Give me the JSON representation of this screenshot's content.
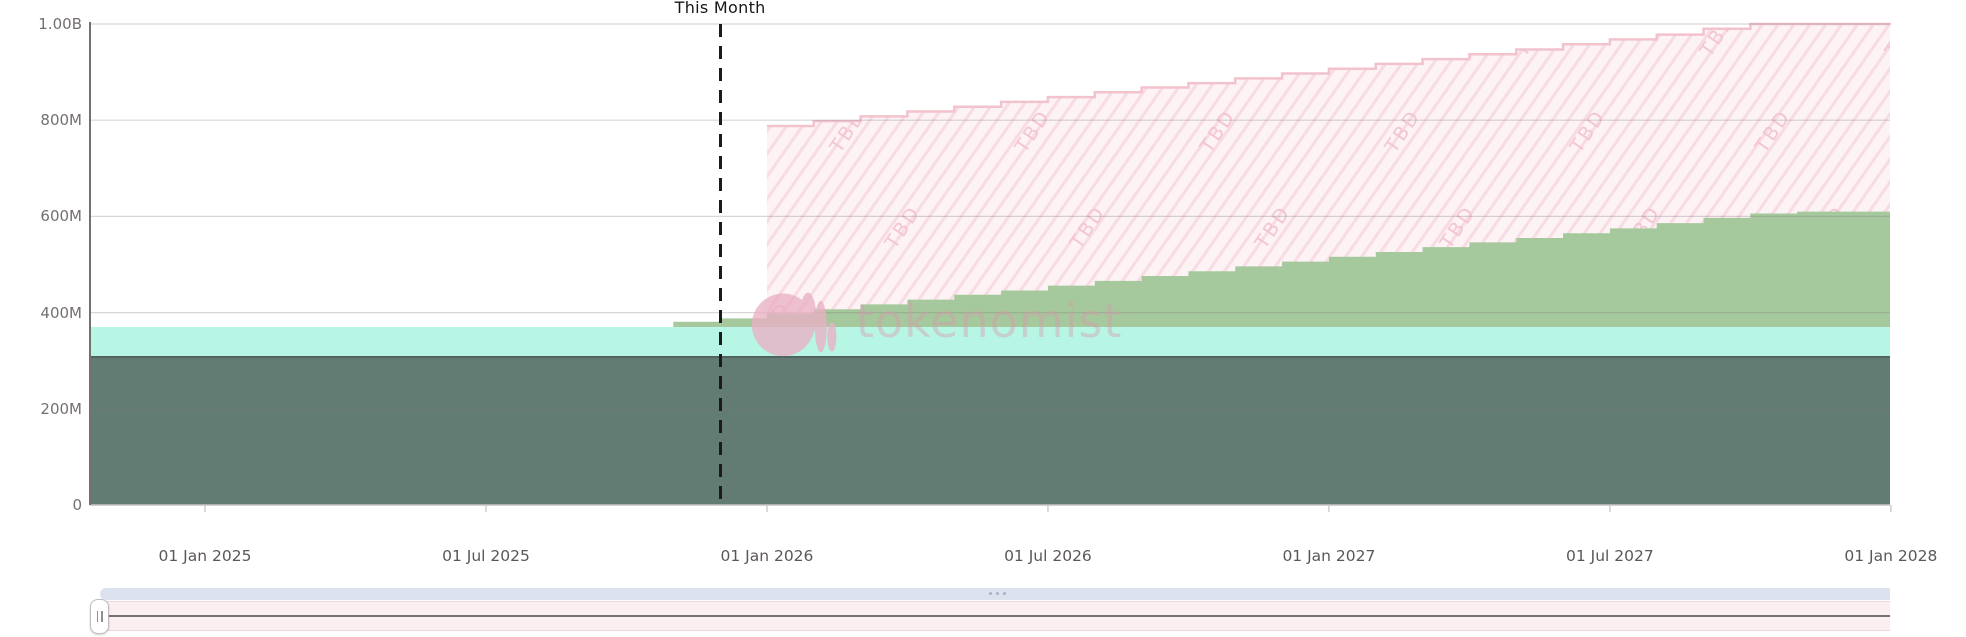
{
  "chart_data": {
    "type": "area",
    "stacked": true,
    "step_interpolation": "step-after",
    "title": "This Month",
    "watermark": "tokenomist",
    "tbd_label": "TBD",
    "unit": "tokens, millions (M) / billions (B)",
    "ylim": [
      0,
      1000
    ],
    "grid": true,
    "months": [
      "2024-10",
      "2024-11",
      "2024-12",
      "2025-01",
      "2025-02",
      "2025-03",
      "2025-04",
      "2025-05",
      "2025-06",
      "2025-07",
      "2025-08",
      "2025-09",
      "2025-10",
      "2025-11",
      "2025-12",
      "2026-01",
      "2026-02",
      "2026-03",
      "2026-04",
      "2026-05",
      "2026-06",
      "2026-07",
      "2026-08",
      "2026-09",
      "2026-10",
      "2026-11",
      "2026-12",
      "2027-01",
      "2027-02",
      "2027-03",
      "2027-04",
      "2027-05",
      "2027-06",
      "2027-07",
      "2027-08",
      "2027-09",
      "2027-10",
      "2027-11",
      "2027-12",
      "2028-01"
    ],
    "this_month_marker": "2025-12",
    "y_axis": {
      "tick_values": [
        0,
        200,
        400,
        600,
        800,
        1000
      ],
      "tick_labels": [
        "0",
        "200M",
        "400M",
        "600M",
        "800M",
        "1.00B"
      ]
    },
    "x_axis": {
      "tick_months": [
        "2025-01",
        "2025-07",
        "2026-01",
        "2026-07",
        "2027-01",
        "2027-07",
        "2028-01"
      ],
      "tick_labels": [
        "01 Jan 2025",
        "01 Jul 2025",
        "01 Jan 2026",
        "01 Jul 2026",
        "01 Jan 2027",
        "01 Jul 2027",
        "01 Jan 2028"
      ]
    },
    "series": [
      {
        "name": "base-band-dark-teal",
        "color": "#627c73",
        "top_edge_color": "#4e645d",
        "cumulative_top_m": {
          "constant": 310,
          "count": 40
        }
      },
      {
        "name": "band-mint",
        "color": "#b7f6e5",
        "cumulative_top_m": {
          "constant": 370,
          "count": 40
        }
      },
      {
        "name": "monthly-unlocks-green",
        "color": "#a5c99c",
        "cumulative_top_m": [
          null,
          null,
          null,
          null,
          null,
          null,
          null,
          null,
          null,
          null,
          null,
          null,
          null,
          381,
          388,
          398,
          407,
          417,
          427,
          437,
          446,
          456,
          466,
          476,
          486,
          496,
          506,
          516,
          526,
          536,
          546,
          555,
          565,
          575,
          586,
          597,
          606,
          610,
          610,
          610
        ]
      },
      {
        "name": "tbd-pink-hatched",
        "color": "#fdf3f5",
        "hatch_color": "#f7dce3",
        "top_stroke_color": "#f2c3cd",
        "label": "TBD",
        "cumulative_top_m": [
          null,
          null,
          null,
          null,
          null,
          null,
          null,
          null,
          null,
          null,
          null,
          null,
          null,
          null,
          null,
          788,
          798,
          808,
          818,
          828,
          838,
          848,
          858,
          868,
          877,
          887,
          897,
          907,
          917,
          927,
          937,
          947,
          958,
          968,
          978,
          990,
          1000,
          1000,
          1000,
          1000
        ]
      }
    ]
  }
}
